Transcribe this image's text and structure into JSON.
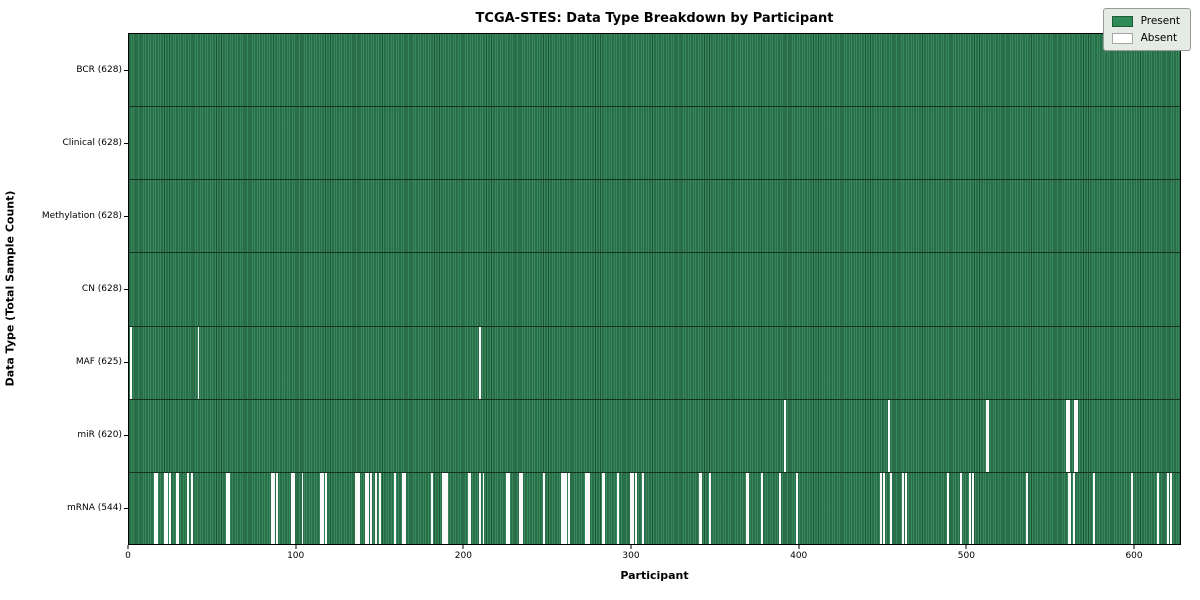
{
  "title": "TCGA-STES: Data Type Breakdown by Participant",
  "legend": {
    "entries": [
      {
        "label": "Present",
        "color": "#2e8b57"
      },
      {
        "label": "Absent",
        "color": "#ffffff"
      }
    ]
  },
  "chart_data": {
    "type": "heatmap",
    "title": "TCGA-STES: Data Type Breakdown by Participant",
    "xlabel": "Participant",
    "ylabel": "Data Type (Total Sample Count)",
    "n_participants": 628,
    "x_ticks": [
      0,
      100,
      200,
      300,
      400,
      500,
      600
    ],
    "xlim": [
      0,
      628
    ],
    "grid": false,
    "legend_position": "upper right",
    "colors": {
      "present": "#2e8b57",
      "present_edge": "#1c5434",
      "absent": "#ffffff",
      "row_divider": "#14321f"
    },
    "rows": [
      {
        "label": "BCR (628)",
        "data_type": "BCR",
        "total": 628,
        "absent_participants": []
      },
      {
        "label": "Clinical (628)",
        "data_type": "Clinical",
        "total": 628,
        "absent_participants": []
      },
      {
        "label": "Methylation (628)",
        "data_type": "Methylation",
        "total": 628,
        "absent_participants": []
      },
      {
        "label": "CN (628)",
        "data_type": "CN",
        "total": 628,
        "absent_participants": []
      },
      {
        "label": "MAF (625)",
        "data_type": "MAF",
        "total": 625,
        "absent_participants": [
          1,
          41,
          209
        ]
      },
      {
        "label": "miR (620)",
        "data_type": "miR",
        "total": 620,
        "absent_participants": [
          391,
          453,
          511,
          512,
          559,
          560,
          564,
          565
        ]
      },
      {
        "label": "mRNA (544)",
        "data_type": "mRNA",
        "total": 544,
        "absent_participants": [
          15,
          16,
          21,
          22,
          24,
          28,
          29,
          35,
          37,
          58,
          59,
          85,
          86,
          88,
          97,
          98,
          103,
          114,
          115,
          117,
          135,
          136,
          137,
          141,
          142,
          144,
          147,
          149,
          158,
          163,
          164,
          180,
          187,
          188,
          189,
          202,
          203,
          209,
          211,
          225,
          226,
          233,
          234,
          247,
          258,
          259,
          260,
          262,
          272,
          273,
          274,
          282,
          283,
          291,
          299,
          300,
          302,
          306,
          340,
          341,
          346,
          368,
          369,
          377,
          388,
          398,
          448,
          450,
          454,
          461,
          463,
          488,
          496,
          501,
          503,
          535,
          560,
          561,
          563,
          575,
          598,
          613,
          619,
          621
        ]
      }
    ]
  }
}
